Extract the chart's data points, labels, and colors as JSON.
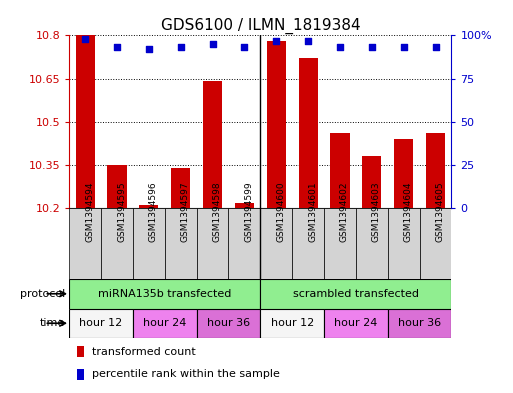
{
  "title": "GDS6100 / ILMN_1819384",
  "samples": [
    "GSM1394594",
    "GSM1394595",
    "GSM1394596",
    "GSM1394597",
    "GSM1394598",
    "GSM1394599",
    "GSM1394600",
    "GSM1394601",
    "GSM1394602",
    "GSM1394603",
    "GSM1394604",
    "GSM1394605"
  ],
  "bar_values": [
    10.8,
    10.35,
    10.21,
    10.34,
    10.64,
    10.22,
    10.78,
    10.72,
    10.46,
    10.38,
    10.44,
    10.46
  ],
  "percentile_values": [
    98,
    93,
    92,
    93,
    95,
    93,
    97,
    97,
    93,
    93,
    93,
    93
  ],
  "ymin": 10.2,
  "ymax": 10.8,
  "yticks_left": [
    10.2,
    10.35,
    10.5,
    10.65,
    10.8
  ],
  "yticks_right": [
    0,
    25,
    50,
    75,
    100
  ],
  "bar_color": "#cc0000",
  "dot_color": "#0000cc",
  "bg_color": "#ffffff",
  "sample_bg": "#d3d3d3",
  "protocol_left_label": "miRNA135b transfected",
  "protocol_right_label": "scrambled transfected",
  "protocol_color": "#90ee90",
  "time_colors": [
    "#f5f5f5",
    "#ee82ee",
    "#da70d6",
    "#f5f5f5",
    "#ee82ee",
    "#da70d6"
  ],
  "time_labels": [
    "hour 12",
    "hour 24",
    "hour 36",
    "hour 12",
    "hour 24",
    "hour 36"
  ],
  "legend_red_label": "transformed count",
  "legend_blue_label": "percentile rank within the sample"
}
